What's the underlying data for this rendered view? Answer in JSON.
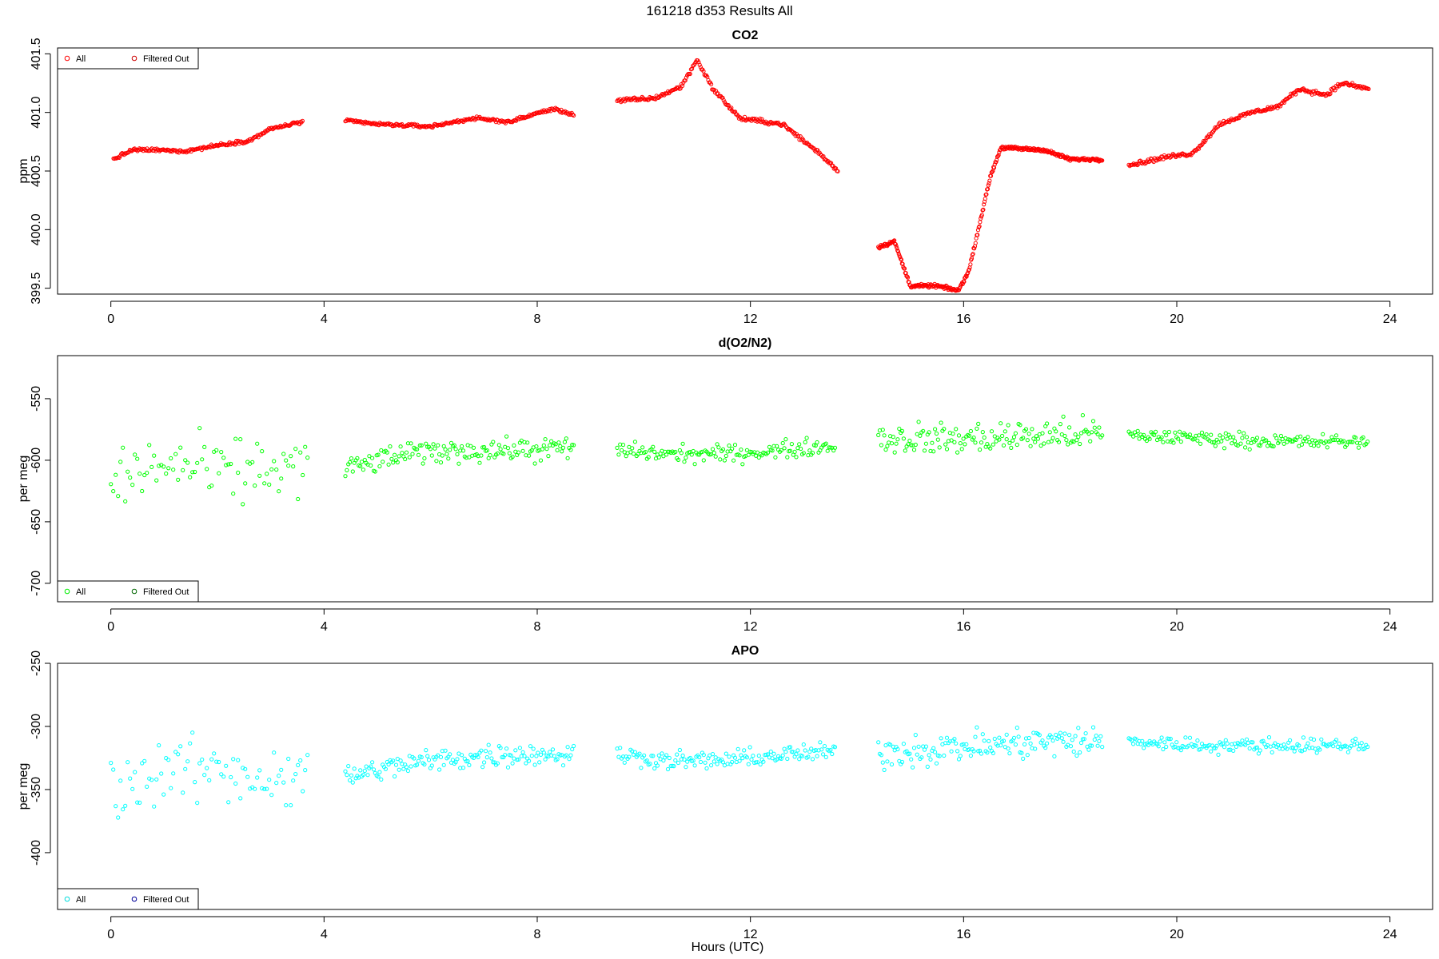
{
  "figure": {
    "title": "161218   d353   Results All",
    "xlabel": "Hours (UTC)"
  },
  "chart_data": [
    {
      "type": "scatter",
      "title": "CO2",
      "xlabel": "Hours (UTC)",
      "ylabel": "ppm",
      "xlim": [
        -1,
        24.8
      ],
      "ylim": [
        399.45,
        401.55
      ],
      "xticks": [
        0,
        4,
        8,
        12,
        16,
        20,
        24
      ],
      "yticks": [
        399.5,
        400.0,
        400.5,
        401.0,
        401.5
      ],
      "ytick_labels": [
        "399.5",
        "400.0",
        "400.5",
        "401.0",
        "401.5"
      ],
      "color": "#ff0000",
      "legend": {
        "position": "top-left",
        "entries": [
          "All",
          "Filtered Out"
        ],
        "colors": [
          "#ff0000",
          "#cc0000"
        ]
      },
      "segments": [
        {
          "x": [
            0.05,
            0.4,
            0.8,
            1.4,
            2.0,
            2.6,
            3.0,
            3.6
          ],
          "y": [
            400.6,
            400.68,
            400.68,
            400.67,
            400.72,
            400.76,
            400.86,
            400.92
          ],
          "noise": 0.012,
          "step": 0.018
        },
        {
          "x": [
            4.4,
            5.0,
            6.0,
            6.8,
            7.5,
            7.9,
            8.3,
            8.7
          ],
          "y": [
            400.93,
            400.9,
            400.88,
            400.95,
            400.92,
            400.98,
            401.03,
            400.98
          ],
          "noise": 0.012,
          "step": 0.018
        },
        {
          "x": [
            9.5,
            10.2,
            10.7,
            11.0,
            11.3,
            11.8,
            12.6,
            13.3,
            13.65
          ],
          "y": [
            401.1,
            401.12,
            401.22,
            401.45,
            401.2,
            400.95,
            400.9,
            400.65,
            400.5
          ],
          "noise": 0.015,
          "step": 0.018
        },
        {
          "x": [
            14.4,
            14.7,
            15.0,
            15.5,
            15.9,
            16.1,
            16.5,
            16.7,
            17.5,
            18.0,
            18.6
          ],
          "y": [
            399.85,
            399.9,
            399.52,
            399.52,
            399.48,
            399.65,
            400.45,
            400.7,
            400.68,
            400.6,
            400.6
          ],
          "noise": 0.012,
          "step": 0.012
        },
        {
          "x": [
            19.1,
            19.8,
            20.3,
            20.8,
            21.4,
            21.9,
            22.3,
            22.8,
            23.1,
            23.6
          ],
          "y": [
            400.55,
            400.62,
            400.65,
            400.9,
            401.0,
            401.05,
            401.2,
            401.15,
            401.25,
            401.2
          ],
          "noise": 0.015,
          "step": 0.018
        }
      ]
    },
    {
      "type": "scatter",
      "title": "d(O2/N2)",
      "xlabel": "Hours (UTC)",
      "ylabel": "per meg",
      "xlim": [
        -1,
        24.8
      ],
      "ylim": [
        -715,
        -515
      ],
      "xticks": [
        0,
        4,
        8,
        12,
        16,
        20,
        24
      ],
      "yticks": [
        -700,
        -650,
        -600,
        -550
      ],
      "ytick_labels": [
        "-700",
        "-650",
        "-600",
        "-550"
      ],
      "color": "#00ff00",
      "legend": {
        "position": "bottom-left",
        "entries": [
          "All",
          "Filtered Out"
        ],
        "colors": [
          "#00ee00",
          "#006600"
        ]
      },
      "segments": [
        {
          "x": [
            0.0,
            1.0,
            2.0,
            3.0,
            3.7
          ],
          "y": [
            -618,
            -603,
            -610,
            -607,
            -605
          ],
          "noise": 22,
          "step": 0.045
        },
        {
          "x": [
            4.4,
            5.5,
            6.5,
            7.5,
            8.7
          ],
          "y": [
            -607,
            -595,
            -592,
            -592,
            -590
          ],
          "noise": 8,
          "step": 0.028
        },
        {
          "x": [
            9.5,
            10.5,
            11.5,
            12.5,
            13.6
          ],
          "y": [
            -592,
            -595,
            -595,
            -592,
            -588
          ],
          "noise": 6,
          "step": 0.028
        },
        {
          "x": [
            14.4,
            15.5,
            16.5,
            17.5,
            18.6
          ],
          "y": [
            -582,
            -583,
            -582,
            -580,
            -578
          ],
          "noise": 11,
          "step": 0.028
        },
        {
          "x": [
            19.1,
            20.5,
            22.0,
            23.6
          ],
          "y": [
            -580,
            -582,
            -585,
            -585
          ],
          "noise": 5,
          "step": 0.028
        }
      ]
    },
    {
      "type": "scatter",
      "title": "APO",
      "xlabel": "Hours (UTC)",
      "ylabel": "per meg",
      "xlim": [
        -1,
        24.8
      ],
      "ylim": [
        -445,
        -250
      ],
      "xticks": [
        0,
        4,
        8,
        12,
        16,
        20,
        24
      ],
      "yticks": [
        -400,
        -350,
        -300,
        -250
      ],
      "ytick_labels": [
        "-400",
        "-350",
        "-300",
        "-250"
      ],
      "color": "#00ffff",
      "legend": {
        "position": "bottom-left",
        "entries": [
          "All",
          "Filtered Out"
        ],
        "colors": [
          "#00dddd",
          "#000099"
        ]
      },
      "segments": [
        {
          "x": [
            0.0,
            1.0,
            2.0,
            3.0,
            3.7
          ],
          "y": [
            -350,
            -335,
            -335,
            -340,
            -338
          ],
          "noise": 22,
          "step": 0.045
        },
        {
          "x": [
            4.4,
            5.5,
            6.5,
            7.5,
            8.7
          ],
          "y": [
            -340,
            -330,
            -325,
            -322,
            -322
          ],
          "noise": 8,
          "step": 0.028
        },
        {
          "x": [
            9.5,
            10.5,
            11.5,
            12.5,
            13.6
          ],
          "y": [
            -322,
            -327,
            -327,
            -323,
            -320
          ],
          "noise": 6,
          "step": 0.028
        },
        {
          "x": [
            14.4,
            15.5,
            16.5,
            17.5,
            18.6
          ],
          "y": [
            -320,
            -318,
            -315,
            -312,
            -312
          ],
          "noise": 11,
          "step": 0.028
        },
        {
          "x": [
            19.1,
            20.5,
            22.0,
            23.6
          ],
          "y": [
            -312,
            -315,
            -315,
            -315
          ],
          "noise": 5,
          "step": 0.028
        }
      ]
    }
  ]
}
